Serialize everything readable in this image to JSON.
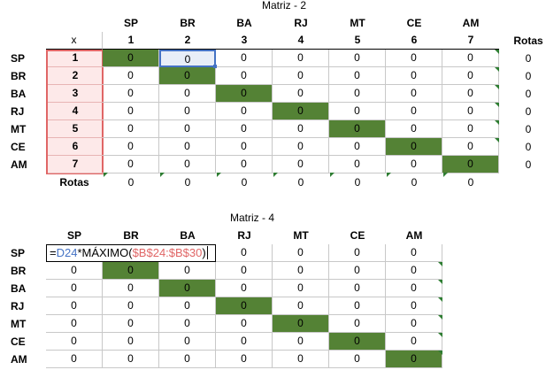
{
  "matrix1": {
    "title": "Matriz - 2",
    "col_labels": [
      "SP",
      "BR",
      "BA",
      "RJ",
      "MT",
      "CE",
      "AM"
    ],
    "index_header": "x",
    "col_numbers": [
      "1",
      "2",
      "3",
      "4",
      "5",
      "6",
      "7"
    ],
    "rotas_col_header": "Rotas",
    "row_labels": [
      "SP",
      "BR",
      "BA",
      "RJ",
      "MT",
      "CE",
      "AM"
    ],
    "row_numbers": [
      "1",
      "2",
      "3",
      "4",
      "5",
      "6",
      "7"
    ],
    "cells": [
      [
        "0",
        "0",
        "0",
        "0",
        "0",
        "0",
        "0"
      ],
      [
        "0",
        "0",
        "0",
        "0",
        "0",
        "0",
        "0"
      ],
      [
        "0",
        "0",
        "0",
        "0",
        "0",
        "0",
        "0"
      ],
      [
        "0",
        "0",
        "0",
        "0",
        "0",
        "0",
        "0"
      ],
      [
        "0",
        "0",
        "0",
        "0",
        "0",
        "0",
        "0"
      ],
      [
        "0",
        "0",
        "0",
        "0",
        "0",
        "0",
        "0"
      ],
      [
        "0",
        "0",
        "0",
        "0",
        "0",
        "0",
        "0"
      ]
    ],
    "row_totals": [
      "0",
      "0",
      "0",
      "0",
      "0",
      "0",
      "0"
    ],
    "rotas_row_label": "Rotas",
    "col_totals": [
      "0",
      "0",
      "0",
      "0",
      "0",
      "0",
      "0"
    ]
  },
  "matrix2": {
    "title": "Matriz - 4",
    "col_labels": [
      "SP",
      "BR",
      "BA",
      "RJ",
      "MT",
      "CE",
      "AM"
    ],
    "row_labels": [
      "SP",
      "BR",
      "BA",
      "RJ",
      "MT",
      "CE",
      "AM"
    ],
    "formula": {
      "prefix": "=",
      "ref1": "D24",
      "middle": "*MÁXIMO(",
      "ref2": "$B$24:$B$30",
      "suffix": ")"
    },
    "cells": [
      [
        "",
        "",
        "",
        "0",
        "0",
        "0",
        "0"
      ],
      [
        "0",
        "0",
        "0",
        "0",
        "0",
        "0",
        "0"
      ],
      [
        "0",
        "0",
        "0",
        "0",
        "0",
        "0",
        "0"
      ],
      [
        "0",
        "0",
        "0",
        "0",
        "0",
        "0",
        "0"
      ],
      [
        "0",
        "0",
        "0",
        "0",
        "0",
        "0",
        "0"
      ],
      [
        "0",
        "0",
        "0",
        "0",
        "0",
        "0",
        "0"
      ],
      [
        "0",
        "0",
        "0",
        "0",
        "0",
        "0",
        "0"
      ]
    ]
  },
  "colors": {
    "diagonal_fill": "#548235",
    "row_header_highlight": "#e06666",
    "selection_border": "#4472c4",
    "formula_ref_blue": "#4472c4",
    "formula_ref_red": "#e06666"
  }
}
